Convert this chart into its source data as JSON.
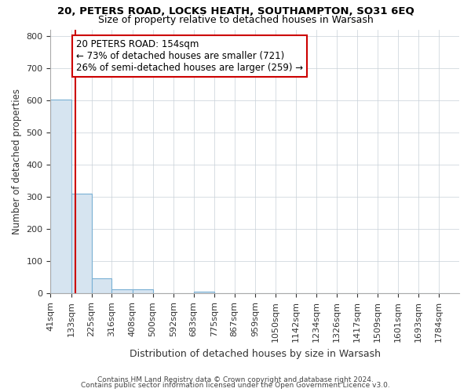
{
  "title": "20, PETERS ROAD, LOCKS HEATH, SOUTHAMPTON, SO31 6EQ",
  "subtitle": "Size of property relative to detached houses in Warsash",
  "xlabel": "Distribution of detached houses by size in Warsash",
  "ylabel": "Number of detached properties",
  "bin_edges": [
    41,
    133,
    225,
    316,
    408,
    500,
    592,
    683,
    775,
    867,
    959,
    1050,
    1142,
    1234,
    1326,
    1417,
    1509,
    1601,
    1693,
    1784,
    1876
  ],
  "bar_heights": [
    603,
    310,
    47,
    12,
    14,
    0,
    0,
    5,
    0,
    0,
    0,
    0,
    0,
    0,
    0,
    0,
    0,
    0,
    0,
    0
  ],
  "bar_color": "#d6e4f0",
  "bar_edge_color": "#7ab0d4",
  "property_size": 154,
  "red_line_color": "#cc0000",
  "annotation_text": "20 PETERS ROAD: 154sqm\n← 73% of detached houses are smaller (721)\n26% of semi-detached houses are larger (259) →",
  "annotation_box_color": "#ffffff",
  "annotation_box_edge": "#cc0000",
  "ylim": [
    0,
    820
  ],
  "yticks": [
    0,
    100,
    200,
    300,
    400,
    500,
    600,
    700,
    800
  ],
  "footer_line1": "Contains HM Land Registry data © Crown copyright and database right 2024.",
  "footer_line2": "Contains public sector information licensed under the Open Government Licence v3.0.",
  "background_color": "#ffffff",
  "grid_color": "#c8d0d8"
}
